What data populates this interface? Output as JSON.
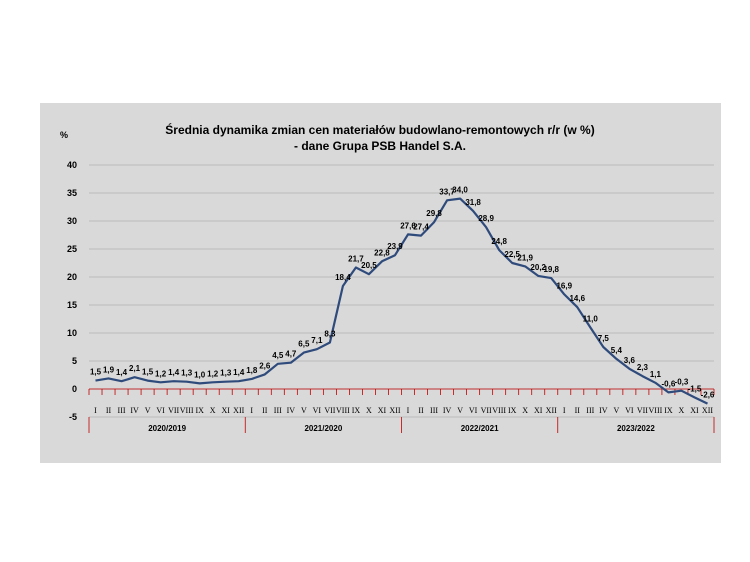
{
  "chart_data": {
    "type": "line",
    "title": "Średnia dynamika zmian cen materiałów budowlano-remontowych r/r (w %)",
    "subtitle": "- dane Grupa PSB Handel S.A.",
    "ylabel": "%",
    "xlabel": "",
    "ylim": [
      -5,
      40
    ],
    "yticks": [
      "40",
      "35",
      "30",
      "25",
      "20",
      "15",
      "10",
      "5",
      "0",
      "-5"
    ],
    "grid": true,
    "legend": "none",
    "line_color": "#2f4b7c",
    "months": [
      "I",
      "II",
      "III",
      "IV",
      "V",
      "VI",
      "VII",
      "VIII",
      "IX",
      "X",
      "XI",
      "XII"
    ],
    "years": [
      "2020/2019",
      "2021/2020",
      "2022/2021",
      "2023/2022"
    ],
    "series": [
      {
        "values": [
          1.5,
          1.9,
          1.4,
          2.1,
          1.5,
          1.2,
          1.4,
          1.3,
          1.0,
          1.2,
          1.3,
          1.4,
          1.8,
          2.6,
          4.5,
          4.7,
          6.5,
          7.1,
          8.3,
          18.4,
          21.7,
          20.5,
          22.8,
          23.9,
          27.6,
          27.4,
          29.8,
          33.7,
          34.0,
          31.8,
          28.9,
          24.8,
          22.5,
          21.9,
          20.2,
          19.8,
          16.9,
          14.6,
          11.0,
          7.5,
          5.4,
          3.6,
          2.3,
          1.1,
          -0.6,
          -0.3,
          -1.5,
          -2.6
        ],
        "labels": [
          "1,5",
          "1,9",
          "1,4",
          "2,1",
          "1,5",
          "1,2",
          "1,4",
          "1,3",
          "1,0",
          "1,2",
          "1,3",
          "1,4",
          "1,8",
          "2,6",
          "4,5",
          "4,7",
          "6,5",
          "7,1",
          "8,3",
          "18,4",
          "21,7",
          "20,5",
          "22,8",
          "23,9",
          "27,6",
          "27,4",
          "29,8",
          "33,7",
          "34,0",
          "31,8",
          "28,9",
          "24,8",
          "22,5",
          "21,9",
          "20,2",
          "19,8",
          "16,9",
          "14,6",
          "11,0",
          "7,5",
          "5,4",
          "3,6",
          "2,3",
          "1,1",
          "-0,6",
          "-0,3",
          "-1,5",
          "-2,6"
        ]
      }
    ]
  }
}
